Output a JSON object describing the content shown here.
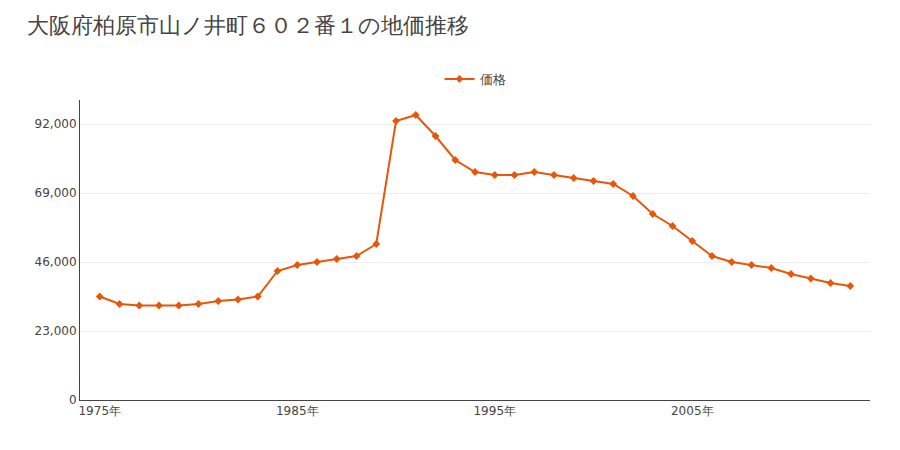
{
  "chart_data": {
    "type": "line",
    "title": "大阪府柏原市山ノ井町６０２番１の地価推移",
    "x": [
      1975,
      1976,
      1977,
      1978,
      1979,
      1980,
      1981,
      1982,
      1983,
      1984,
      1985,
      1986,
      1987,
      1988,
      1989,
      1990,
      1991,
      1992,
      1993,
      1994,
      1995,
      1996,
      1997,
      1998,
      1999,
      2000,
      2001,
      2002,
      2003,
      2004,
      2005,
      2006,
      2007,
      2008,
      2009,
      2010,
      2011,
      2012,
      2013
    ],
    "series": [
      {
        "name": "価格",
        "color": "#e8560a",
        "marker": "diamond",
        "values": [
          34500,
          32000,
          31500,
          31500,
          31500,
          32000,
          33000,
          33500,
          34500,
          43000,
          45000,
          46000,
          47000,
          48000,
          52000,
          93000,
          95000,
          88000,
          80000,
          76000,
          75000,
          75000,
          76000,
          75000,
          74000,
          73000,
          72000,
          68000,
          62000,
          58000,
          53000,
          48000,
          46000,
          45000,
          44000,
          42000,
          40500,
          39000,
          38000
        ]
      }
    ],
    "xlim": [
      1974,
      2014
    ],
    "xticks": [
      {
        "value": 1975,
        "label": "1975年"
      },
      {
        "value": 1985,
        "label": "1985年"
      },
      {
        "value": 1995,
        "label": "1995年"
      },
      {
        "value": 2005,
        "label": "2005年"
      }
    ],
    "ylim": [
      0,
      100000
    ],
    "yticks": [
      0,
      {
        "value": 23000,
        "label": "23,000"
      },
      {
        "value": 46000,
        "label": "46,000"
      },
      {
        "value": 69000,
        "label": "69,000"
      },
      {
        "value": 92000,
        "label": "92,000"
      }
    ],
    "grid": "y",
    "legend": "top"
  }
}
